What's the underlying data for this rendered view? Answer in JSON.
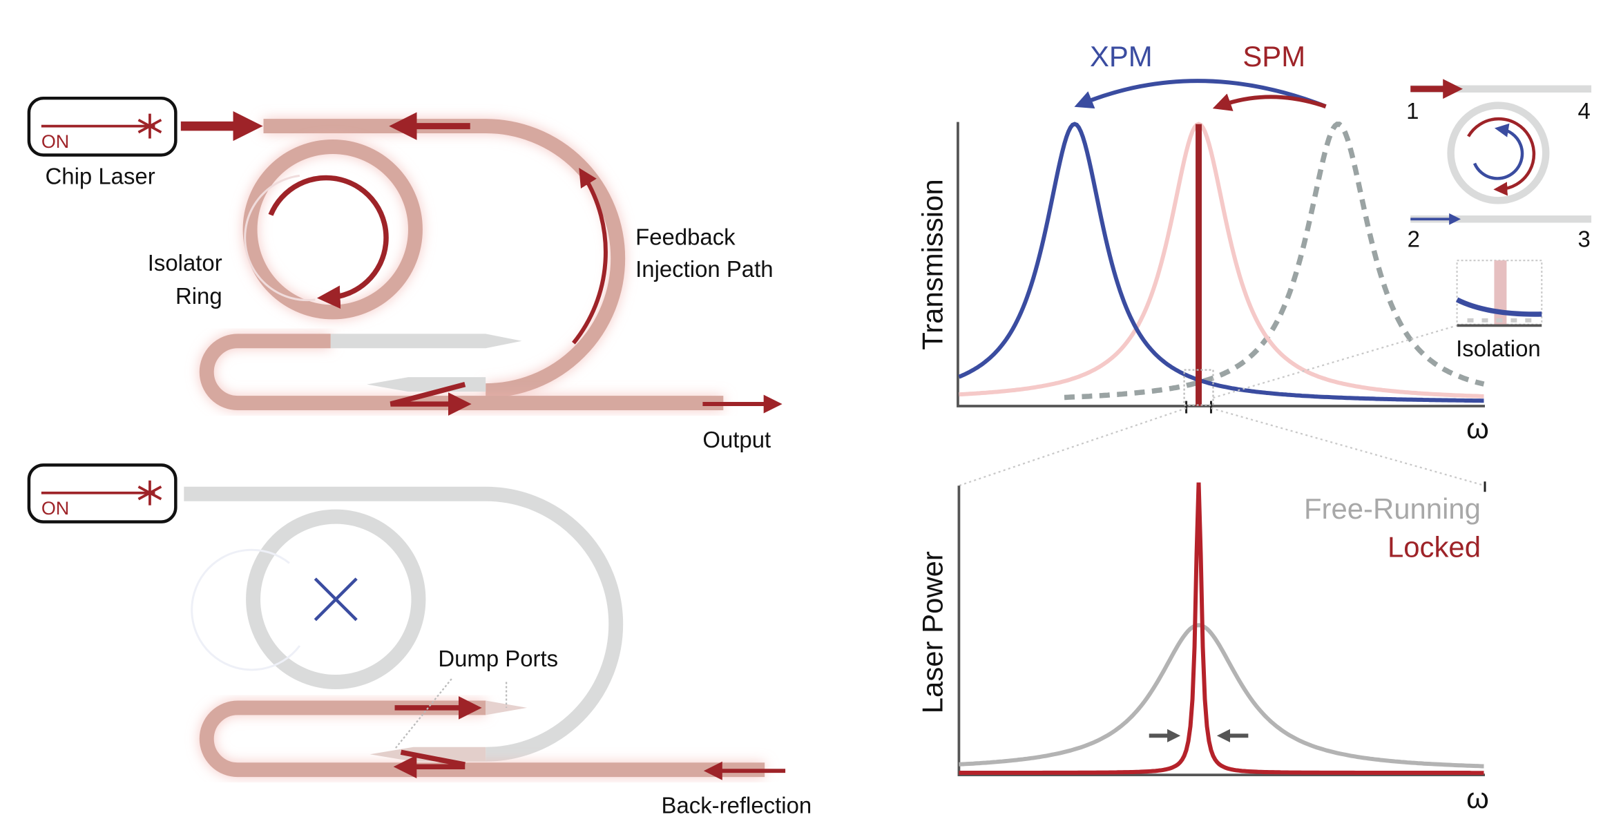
{
  "panel_top_left": {
    "laser_state": "ON",
    "laser_label": "Chip Laser",
    "ring_label_line1": "Isolator",
    "ring_label_line2": "Ring",
    "path_label_line1": "Feedback",
    "path_label_line2": "Injection Path",
    "output_label": "Output"
  },
  "panel_bottom_left": {
    "laser_state": "ON",
    "dump_label": "Dump Ports",
    "backreflection_label": "Back-reflection"
  },
  "transmission_plot": {
    "ylabel": "Transmission",
    "xlabel": "ω",
    "xpm_label": "XPM",
    "spm_label": "SPM"
  },
  "isolator_inset": {
    "port1": "1",
    "port2": "2",
    "port3": "3",
    "port4": "4",
    "isolation_label": "Isolation"
  },
  "laser_power_plot": {
    "ylabel": "Laser Power",
    "xlabel": "ω",
    "legend_free": "Free-Running",
    "legend_locked": "Locked"
  },
  "colors": {
    "red": "#9e2328",
    "blue": "#3a4ca0",
    "pink": "#f5c9c8",
    "gray": "#b3b3b3",
    "waveguide_red": "#d6a89f",
    "waveguide_gray": "#dadbdb"
  }
}
